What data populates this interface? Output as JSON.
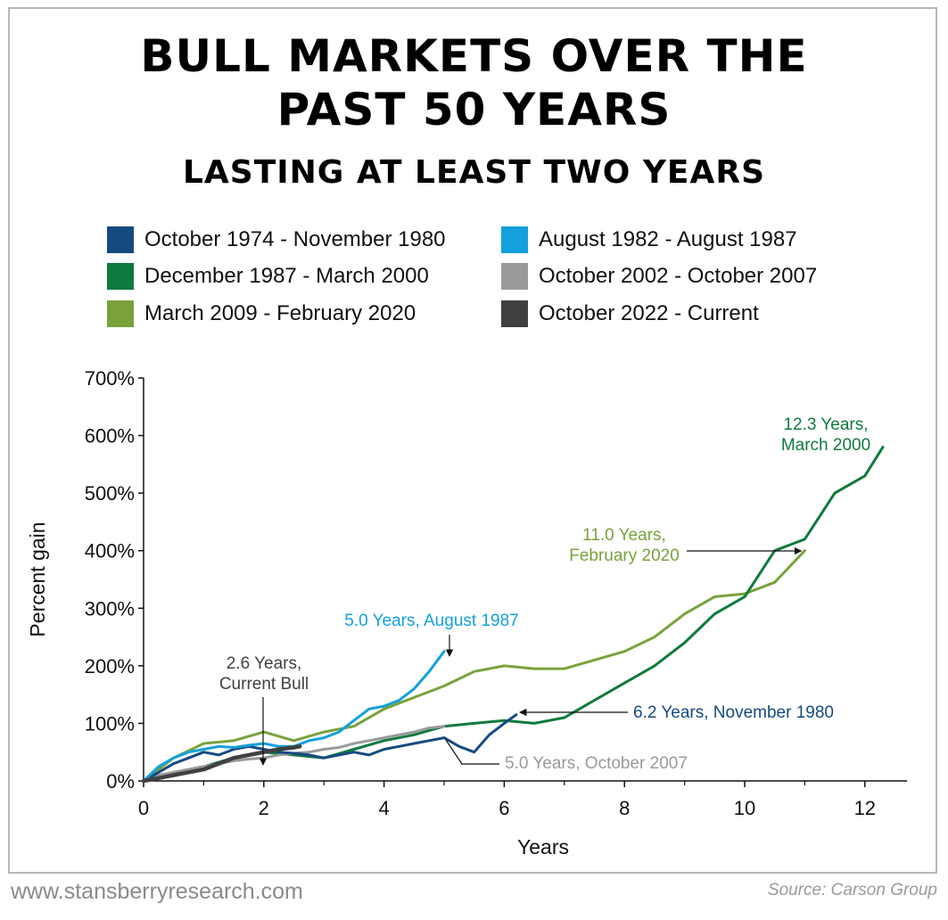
{
  "title_line1": "BULL MARKETS OVER THE",
  "title_line2": "PAST 50 YEARS",
  "subtitle": "LASTING AT LEAST TWO YEARS",
  "footer_left": "www.stansberryresearch.com",
  "footer_right": "Source: Carson Group",
  "chart_data": {
    "type": "line",
    "title": "BULL MARKETS OVER THE PAST 50 YEARS",
    "subtitle": "LASTING AT LEAST TWO YEARS",
    "xlabel": "Years",
    "ylabel": "Percent gain",
    "xlim": [
      0,
      12.7
    ],
    "ylim": [
      0,
      700
    ],
    "x_ticks": [
      "0",
      "2",
      "4",
      "6",
      "8",
      "10",
      "12"
    ],
    "y_ticks": [
      "0%",
      "100%",
      "200%",
      "300%",
      "400%",
      "500%",
      "600%",
      "700%"
    ],
    "grid": false,
    "legend_position": "top",
    "series": [
      {
        "name": "October 1974 - November 1980",
        "color": "#154a80",
        "x": [
          0,
          0.25,
          0.5,
          0.75,
          1.0,
          1.25,
          1.5,
          1.75,
          2.0,
          2.25,
          2.5,
          2.75,
          3.0,
          3.25,
          3.5,
          3.75,
          4.0,
          4.25,
          4.5,
          4.75,
          5.0,
          5.25,
          5.5,
          5.75,
          6.0,
          6.2
        ],
        "y": [
          0,
          15,
          30,
          40,
          50,
          45,
          55,
          60,
          55,
          50,
          48,
          45,
          40,
          45,
          50,
          45,
          55,
          60,
          65,
          70,
          75,
          60,
          50,
          80,
          100,
          115
        ]
      },
      {
        "name": "August 1982 - August 1987",
        "color": "#13a0dc",
        "x": [
          0,
          0.25,
          0.5,
          0.75,
          1.0,
          1.25,
          1.5,
          1.75,
          2.0,
          2.25,
          2.5,
          2.75,
          3.0,
          3.25,
          3.5,
          3.75,
          4.0,
          4.25,
          4.5,
          4.75,
          5.0
        ],
        "y": [
          0,
          25,
          40,
          50,
          55,
          60,
          58,
          62,
          65,
          60,
          60,
          70,
          75,
          85,
          105,
          125,
          130,
          140,
          160,
          190,
          225
        ]
      },
      {
        "name": "December 1987 - March 2000",
        "color": "#0f7a3e",
        "x": [
          0,
          0.5,
          1.0,
          1.5,
          2.0,
          2.5,
          3.0,
          3.5,
          4.0,
          4.5,
          5.0,
          5.5,
          6.0,
          6.5,
          7.0,
          7.5,
          8.0,
          8.5,
          9.0,
          9.5,
          10.0,
          10.5,
          11.0,
          11.5,
          12.0,
          12.3
        ],
        "y": [
          0,
          15,
          25,
          40,
          50,
          45,
          40,
          55,
          70,
          80,
          95,
          100,
          105,
          100,
          110,
          140,
          170,
          200,
          240,
          290,
          320,
          400,
          420,
          500,
          530,
          580
        ]
      },
      {
        "name": "October 2002 - October 2007",
        "color": "#999a9c",
        "x": [
          0,
          0.25,
          0.5,
          0.75,
          1.0,
          1.25,
          1.5,
          1.75,
          2.0,
          2.25,
          2.5,
          2.75,
          3.0,
          3.25,
          3.5,
          3.75,
          4.0,
          4.25,
          4.5,
          4.75,
          5.0
        ],
        "y": [
          0,
          10,
          15,
          20,
          25,
          30,
          35,
          38,
          40,
          45,
          48,
          50,
          55,
          58,
          65,
          70,
          75,
          80,
          85,
          92,
          95
        ]
      },
      {
        "name": "March 2009 - February 2020",
        "color": "#79a23c",
        "x": [
          0,
          0.5,
          1.0,
          1.5,
          2.0,
          2.5,
          3.0,
          3.5,
          4.0,
          4.5,
          5.0,
          5.5,
          6.0,
          6.5,
          7.0,
          7.5,
          8.0,
          8.5,
          9.0,
          9.5,
          10.0,
          10.5,
          11.0
        ],
        "y": [
          0,
          40,
          65,
          70,
          85,
          70,
          85,
          95,
          125,
          145,
          165,
          190,
          200,
          195,
          195,
          210,
          225,
          250,
          290,
          320,
          325,
          345,
          400
        ]
      },
      {
        "name": "October 2022 - Current",
        "color": "#404042",
        "x": [
          0,
          0.25,
          0.5,
          0.75,
          1.0,
          1.25,
          1.5,
          1.75,
          2.0,
          2.25,
          2.5,
          2.6
        ],
        "y": [
          0,
          5,
          10,
          15,
          20,
          30,
          40,
          45,
          50,
          55,
          58,
          60
        ]
      }
    ],
    "annotations": [
      {
        "text_lines": [
          "12.3 Years,",
          "March 2000"
        ],
        "x": 12.3,
        "y": 580,
        "color": "#0f7a3e"
      },
      {
        "text_lines": [
          "11.0 Years,",
          "February 2020"
        ],
        "x": 11.0,
        "y": 400,
        "color": "#79a23c"
      },
      {
        "text_lines": [
          "5.0 Years, August 1987"
        ],
        "x": 5.0,
        "y": 225,
        "color": "#13a0dc"
      },
      {
        "text_lines": [
          "2.6 Years,",
          "Current Bull"
        ],
        "x": 2.0,
        "y": 50,
        "color": "#404042"
      },
      {
        "text_lines": [
          "6.2 Years, November 1980"
        ],
        "x": 6.2,
        "y": 115,
        "color": "#154a80"
      },
      {
        "text_lines": [
          "5.0 Years, October 2007"
        ],
        "x": 5.0,
        "y": 95,
        "color": "#999a9c"
      }
    ]
  }
}
